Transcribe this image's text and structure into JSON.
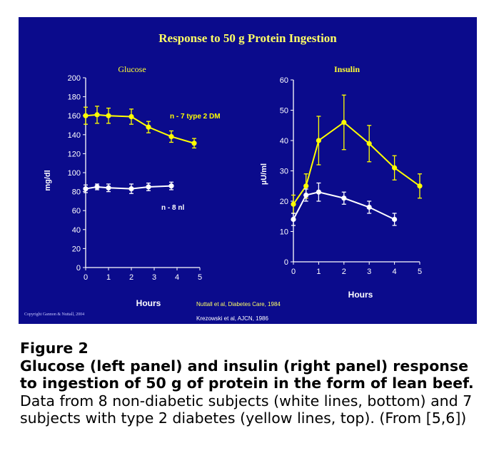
{
  "colors": {
    "slide_background": "#0b0b8c",
    "title": "#ffff66",
    "panel_label": "#ffff33",
    "diabetes_series": "#ffff00",
    "normal_series": "#ffffff",
    "axis": "#ffffff",
    "citation": "#ffff66",
    "copyright": "#c8c8ff"
  },
  "slide_title": "Response to 50 g Protein Ingestion",
  "copyright": "Copyright Gannon & Nuttall, 2004",
  "citations": [
    "Nuttall et al, Diabetes Care, 1984",
    "Krezowski et al, AJCN, 1986"
  ],
  "chart_data": [
    {
      "type": "line",
      "panel_title": "Glucose",
      "xlabel": "Hours",
      "ylabel": "mg/dl",
      "xlim": [
        0,
        5
      ],
      "ylim": [
        0,
        200
      ],
      "xticks": [
        "0",
        "1",
        "2",
        "3",
        "4",
        "5"
      ],
      "yticks": [
        "0",
        "20",
        "40",
        "60",
        "80",
        "100",
        "120",
        "140",
        "160",
        "180",
        "200"
      ],
      "series": [
        {
          "name": "n - 7  type 2 DM",
          "color": "#ffff00",
          "x": [
            0,
            0.5,
            1,
            2,
            2.75,
            3.75,
            4.75
          ],
          "y": [
            160,
            161,
            160,
            159,
            148,
            138,
            131
          ],
          "error": [
            9,
            9,
            8,
            8,
            6,
            6,
            5
          ]
        },
        {
          "name": "n - 8 nl",
          "color": "#ffffff",
          "x": [
            0,
            0.5,
            1,
            2,
            2.75,
            3.75
          ],
          "y": [
            83,
            85,
            84,
            83,
            85,
            86
          ],
          "error": [
            4,
            3,
            4,
            5,
            4,
            4
          ]
        }
      ],
      "series_labels": [
        "n - 7  type 2 DM",
        "n - 8 nl"
      ]
    },
    {
      "type": "line",
      "panel_title": "Insulin",
      "xlabel": "Hours",
      "ylabel": "µU/ml",
      "xlim": [
        0,
        5
      ],
      "ylim": [
        0,
        60
      ],
      "xticks": [
        "0",
        "1",
        "2",
        "3",
        "4",
        "5"
      ],
      "yticks": [
        "0",
        "10",
        "20",
        "30",
        "40",
        "50",
        "60"
      ],
      "series": [
        {
          "name": "type 2 DM",
          "color": "#ffff00",
          "x": [
            0,
            0.5,
            1,
            2,
            3,
            4,
            5
          ],
          "y": [
            19,
            25,
            40,
            46,
            39,
            31,
            25
          ],
          "error": [
            3,
            4,
            8,
            9,
            6,
            4,
            4
          ]
        },
        {
          "name": "nl",
          "color": "#ffffff",
          "x": [
            0,
            0.5,
            1,
            2,
            3,
            4
          ],
          "y": [
            14,
            22,
            23,
            21,
            18,
            14
          ],
          "error": [
            2,
            2,
            3,
            2,
            2,
            2
          ]
        }
      ]
    }
  ],
  "caption": {
    "label": "Figure 2",
    "bold": "Glucose (left panel) and insulin (right panel) response to ingestion of 50 g of protein in the form of lean beef.",
    "text": " Data from 8 non-diabetic subjects (white lines, bottom) and 7 subjects with type 2 diabetes (yellow lines, top). (From [5,6])"
  }
}
